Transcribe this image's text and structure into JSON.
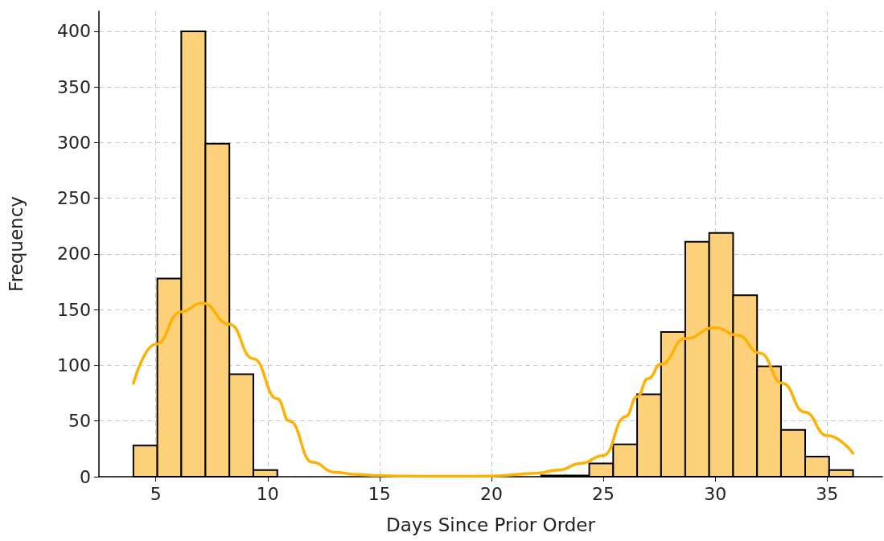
{
  "chart_data": {
    "type": "histogram",
    "xlabel": "Days Since Prior Order",
    "ylabel": "Frequency",
    "bins": [
      4.0,
      5.07,
      6.14,
      7.22,
      8.29,
      9.36,
      10.43,
      11.5,
      12.58,
      13.65,
      14.72,
      15.79,
      16.86,
      17.94,
      19.01,
      20.08,
      21.15,
      22.22,
      23.3,
      24.37,
      25.44,
      26.51,
      27.58,
      28.66,
      29.73,
      30.8,
      31.87,
      32.94,
      34.02,
      35.09,
      36.16
    ],
    "values": [
      28,
      178,
      400,
      299,
      92,
      6,
      0,
      0,
      0,
      0,
      0,
      0,
      0,
      0,
      0,
      0,
      0,
      1,
      1,
      12,
      29,
      74,
      130,
      211,
      219,
      163,
      99,
      42,
      18,
      6
    ],
    "color": "#fdd17a",
    "series": [
      {
        "type": "line",
        "color": "#ffb000",
        "x": [
          4.0,
          5,
          6.13,
          7.07,
          8.29,
          9.36,
          10.43,
          10.97,
          12,
          13,
          14,
          15,
          16,
          18,
          20,
          22,
          23,
          24,
          25,
          26,
          26.51,
          27,
          27.58,
          28.66,
          30,
          31,
          32,
          33,
          34,
          35,
          36.16
        ],
        "values": [
          84,
          119,
          148,
          156,
          137,
          106,
          70,
          50,
          13,
          4,
          2,
          1,
          0.5,
          0.3,
          0.5,
          3,
          6,
          12,
          19,
          54,
          72,
          88,
          101,
          124,
          134,
          127,
          111,
          84,
          58,
          37,
          21
        ]
      }
    ],
    "xlim": [
      2.46,
      37.47
    ],
    "xticks": [
      5,
      10,
      15,
      20,
      25,
      30,
      35
    ],
    "ylim": [
      0,
      418
    ],
    "yticks": [
      0,
      50,
      100,
      150,
      200,
      250,
      300,
      350,
      400
    ],
    "grid": true,
    "marker": "none",
    "line_style": "solid"
  }
}
